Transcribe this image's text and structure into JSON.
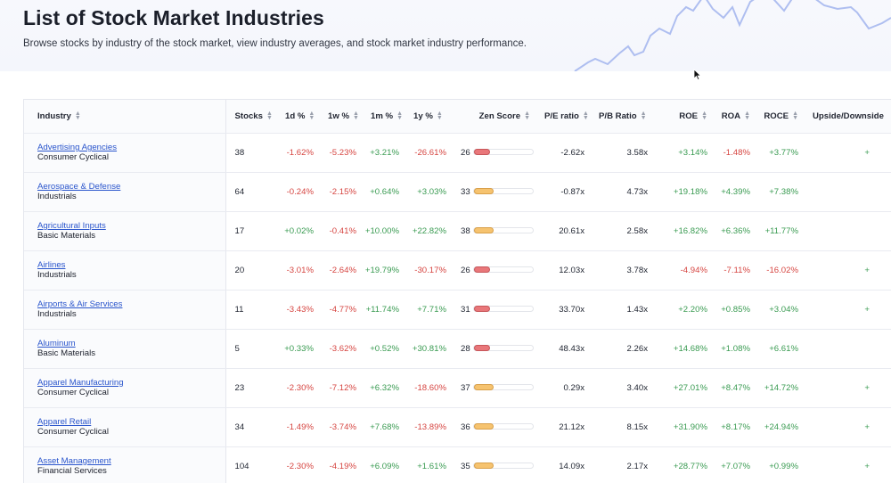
{
  "header": {
    "title": "List of Stock Market Industries",
    "subtitle": "Browse stocks by industry of the stock market, view industry averages, and stock market industry performance."
  },
  "table": {
    "columns": {
      "industry": "Industry",
      "stocks": "Stocks",
      "d1": "1d %",
      "w1": "1w %",
      "m1": "1m %",
      "y1": "1y %",
      "zen": "Zen Score",
      "pe": "P/E ratio",
      "pb": "P/B Ratio",
      "roe": "ROE",
      "roa": "ROA",
      "roce": "ROCE",
      "upside": "Upside/Downside"
    },
    "rows": [
      {
        "name": "Advertising Agencies",
        "sector": "Consumer Cyclical",
        "stocks": "38",
        "d1": "-1.62%",
        "w1": "-5.23%",
        "m1": "+3.21%",
        "y1": "-26.61%",
        "zen": "26",
        "zen_level": "red",
        "pe": "-2.62x",
        "pb": "3.58x",
        "roe": "+3.14%",
        "roa": "-1.48%",
        "roce": "+3.77%",
        "upside": "+"
      },
      {
        "name": "Aerospace & Defense",
        "sector": "Industrials",
        "stocks": "64",
        "d1": "-0.24%",
        "w1": "-2.15%",
        "m1": "+0.64%",
        "y1": "+3.03%",
        "zen": "33",
        "zen_level": "amber",
        "pe": "-0.87x",
        "pb": "4.73x",
        "roe": "+19.18%",
        "roa": "+4.39%",
        "roce": "+7.38%",
        "upside": ""
      },
      {
        "name": "Agricultural Inputs",
        "sector": "Basic Materials",
        "stocks": "17",
        "d1": "+0.02%",
        "w1": "-0.41%",
        "m1": "+10.00%",
        "y1": "+22.82%",
        "zen": "38",
        "zen_level": "amber",
        "pe": "20.61x",
        "pb": "2.58x",
        "roe": "+16.82%",
        "roa": "+6.36%",
        "roce": "+11.77%",
        "upside": ""
      },
      {
        "name": "Airlines",
        "sector": "Industrials",
        "stocks": "20",
        "d1": "-3.01%",
        "w1": "-2.64%",
        "m1": "+19.79%",
        "y1": "-30.17%",
        "zen": "26",
        "zen_level": "red",
        "pe": "12.03x",
        "pb": "3.78x",
        "roe": "-4.94%",
        "roa": "-7.11%",
        "roce": "-16.02%",
        "upside": "+"
      },
      {
        "name": "Airports & Air Services",
        "sector": "Industrials",
        "stocks": "11",
        "d1": "-3.43%",
        "w1": "-4.77%",
        "m1": "+11.74%",
        "y1": "+7.71%",
        "zen": "31",
        "zen_level": "red",
        "pe": "33.70x",
        "pb": "1.43x",
        "roe": "+2.20%",
        "roa": "+0.85%",
        "roce": "+3.04%",
        "upside": "+"
      },
      {
        "name": "Aluminum",
        "sector": "Basic Materials",
        "stocks": "5",
        "d1": "+0.33%",
        "w1": "-3.62%",
        "m1": "+0.52%",
        "y1": "+30.81%",
        "zen": "28",
        "zen_level": "red",
        "pe": "48.43x",
        "pb": "2.26x",
        "roe": "+14.68%",
        "roa": "+1.08%",
        "roce": "+6.61%",
        "upside": ""
      },
      {
        "name": "Apparel Manufacturing",
        "sector": "Consumer Cyclical",
        "stocks": "23",
        "d1": "-2.30%",
        "w1": "-7.12%",
        "m1": "+6.32%",
        "y1": "-18.60%",
        "zen": "37",
        "zen_level": "amber",
        "pe": "0.29x",
        "pb": "3.40x",
        "roe": "+27.01%",
        "roa": "+8.47%",
        "roce": "+14.72%",
        "upside": "+"
      },
      {
        "name": "Apparel Retail",
        "sector": "Consumer Cyclical",
        "stocks": "34",
        "d1": "-1.49%",
        "w1": "-3.74%",
        "m1": "+7.68%",
        "y1": "-13.89%",
        "zen": "36",
        "zen_level": "amber",
        "pe": "21.12x",
        "pb": "8.15x",
        "roe": "+31.90%",
        "roa": "+8.17%",
        "roce": "+24.94%",
        "upside": "+"
      },
      {
        "name": "Asset Management",
        "sector": "Financial Services",
        "stocks": "104",
        "d1": "-2.30%",
        "w1": "-4.19%",
        "m1": "+6.09%",
        "y1": "+1.61%",
        "zen": "35",
        "zen_level": "amber",
        "pe": "14.09x",
        "pb": "2.17x",
        "roe": "+28.77%",
        "roa": "+7.07%",
        "roce": "+0.99%",
        "upside": "+"
      }
    ]
  }
}
